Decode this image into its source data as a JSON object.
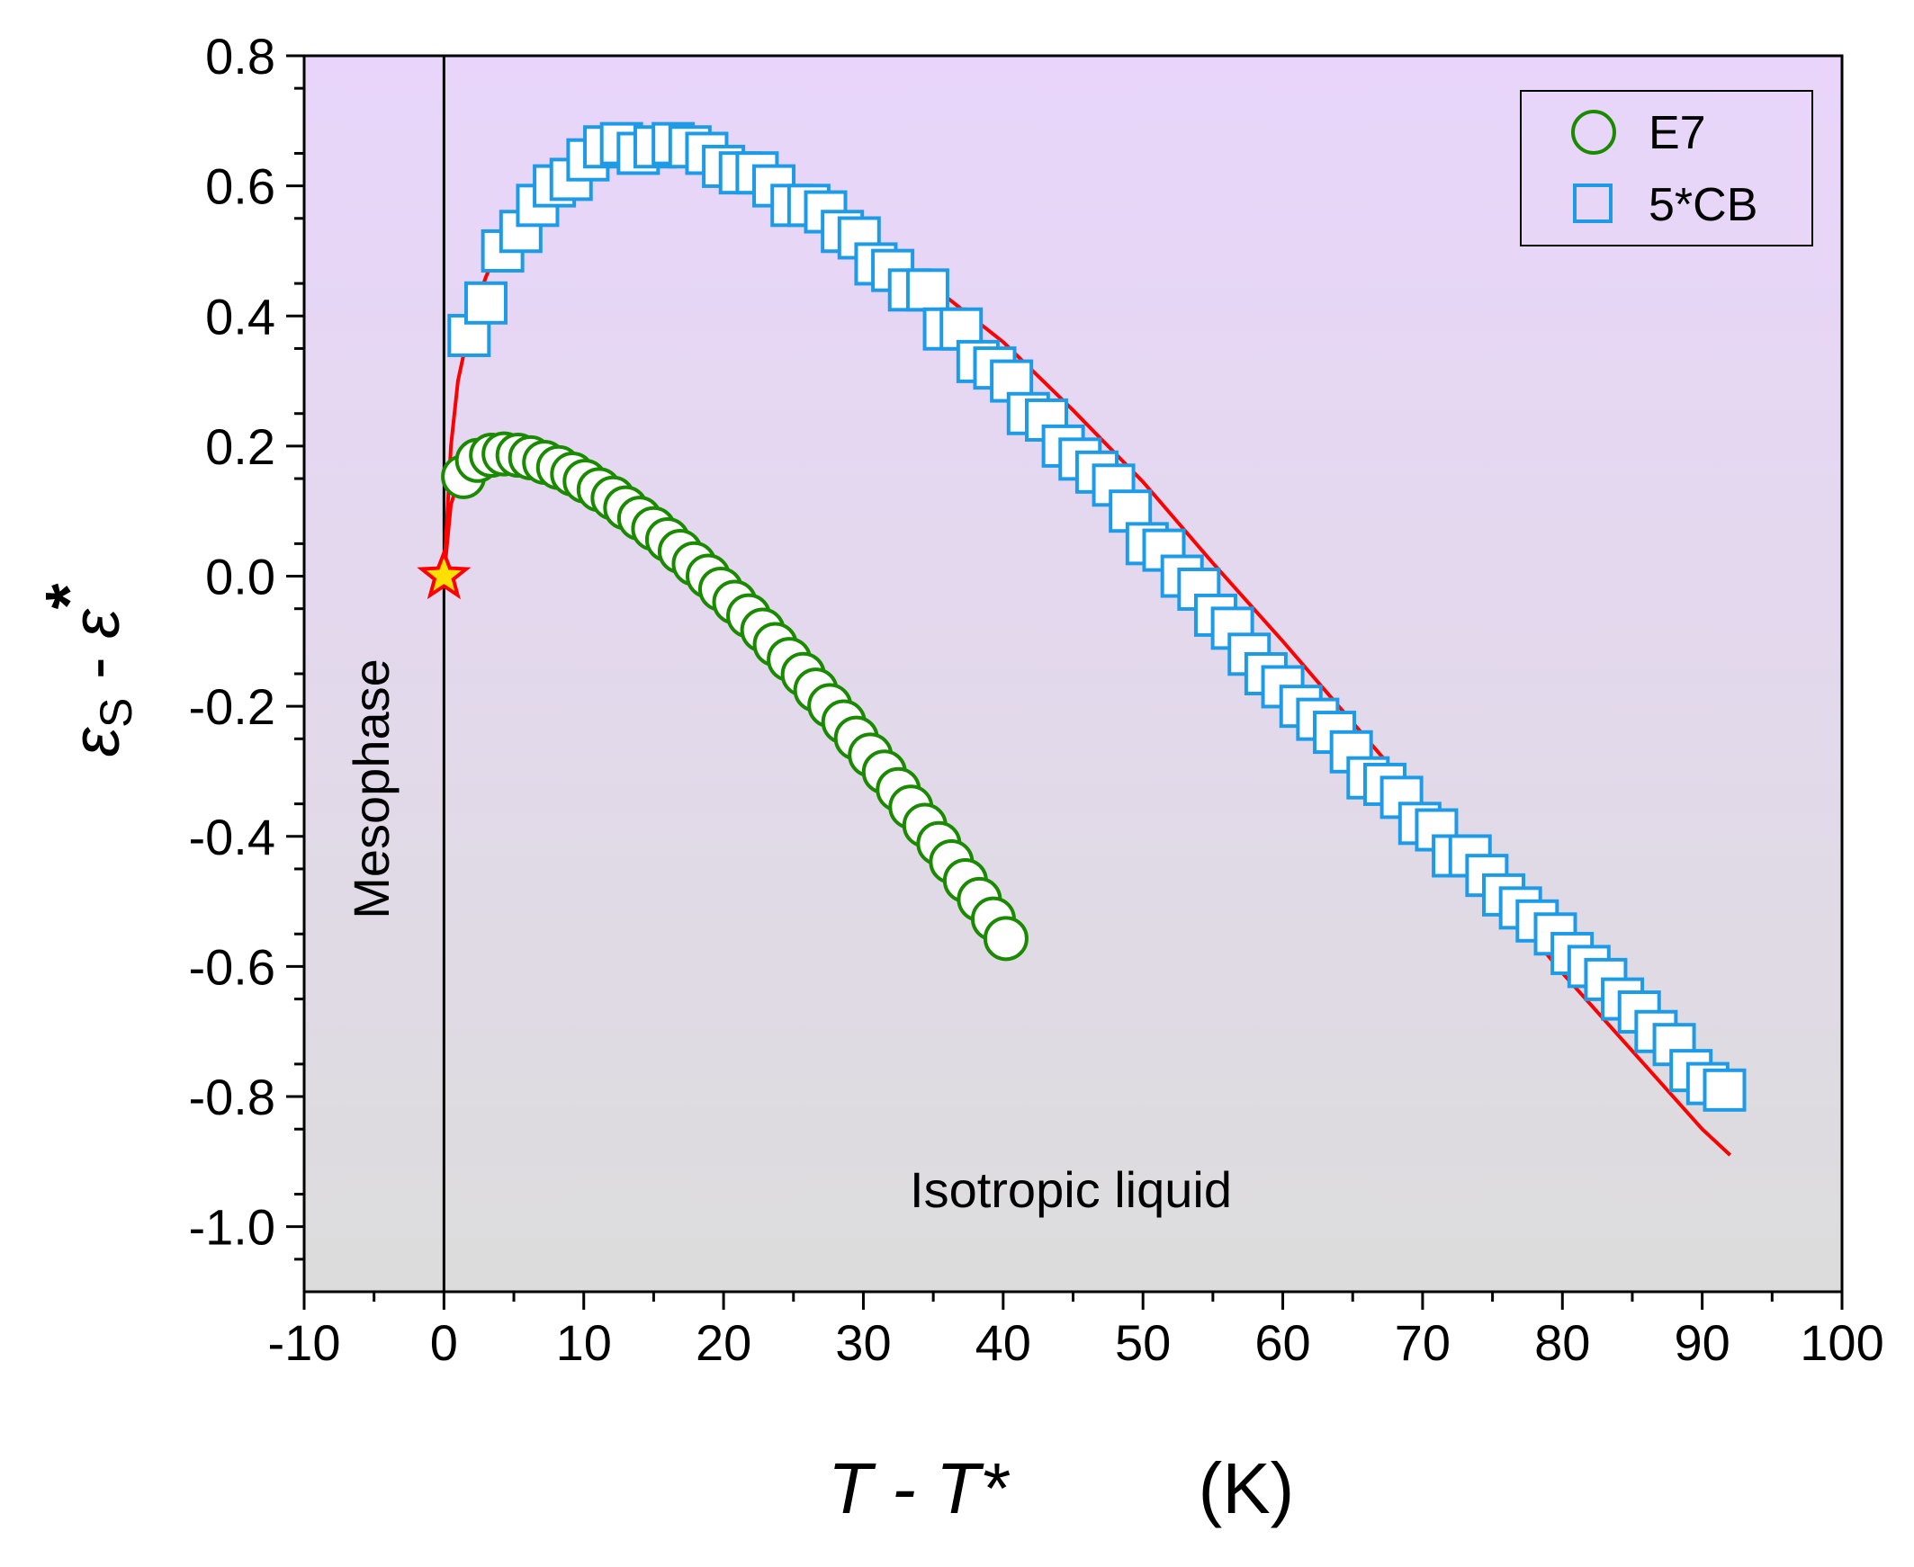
{
  "chart_data": {
    "type": "scatter",
    "xlabel_main": "T - T*",
    "xlabel_unit": "(K)",
    "ylabel_parts": [
      "ε",
      "S",
      " - ",
      "ε",
      "*"
    ],
    "xlim": [
      -10,
      100
    ],
    "ylim": [
      -1.1,
      0.8
    ],
    "xticks": [
      -10,
      0,
      10,
      20,
      30,
      40,
      50,
      60,
      70,
      80,
      90,
      100
    ],
    "xtick_labels": [
      "-10",
      "0",
      "10",
      "20",
      "30",
      "40",
      "50",
      "60",
      "70",
      "80",
      "90",
      "100"
    ],
    "yticks": [
      0.8,
      0.6,
      0.4,
      0.2,
      0.0,
      -0.2,
      -0.4,
      -0.6,
      -0.8,
      -1.0
    ],
    "ytick_labels": [
      "0.8",
      "0.6",
      "0.4",
      "0.2",
      "0.0",
      "-0.2",
      "-0.4",
      "-0.6",
      "-0.8",
      "-1.0"
    ],
    "annotations": {
      "mesophase": "Mesophase",
      "isotropic": "Isotropic liquid"
    },
    "legend_position": "top-right",
    "background_gradient": [
      "#e9d5fb",
      "#dcdcdc"
    ],
    "vertical_line_x": 0,
    "star_point": {
      "x": 0,
      "y": 0,
      "fill": "#ffe000",
      "stroke": "#ff0000"
    },
    "fit_color": "#ff0000",
    "series": [
      {
        "name": "E7",
        "marker": "circle",
        "color": "#1a8a00",
        "x": [
          1.4,
          2.4,
          3.4,
          4.3,
          5.3,
          6.2,
          7.2,
          8.2,
          9.2,
          10.1,
          11.1,
          12.1,
          13.0,
          14.0,
          15.0,
          16.0,
          16.9,
          17.9,
          18.9,
          19.8,
          20.8,
          21.8,
          22.8,
          23.7,
          24.7,
          25.7,
          26.6,
          27.6,
          28.6,
          29.5,
          30.5,
          31.5,
          32.5,
          33.4,
          34.4,
          35.4,
          36.3,
          37.3,
          38.3,
          39.3,
          40.2
        ],
        "y": [
          0.153,
          0.178,
          0.186,
          0.188,
          0.186,
          0.182,
          0.175,
          0.167,
          0.157,
          0.146,
          0.133,
          0.12,
          0.105,
          0.089,
          0.073,
          0.056,
          0.038,
          0.019,
          0.0,
          -0.02,
          -0.04,
          -0.061,
          -0.083,
          -0.105,
          -0.128,
          -0.151,
          -0.175,
          -0.199,
          -0.224,
          -0.249,
          -0.275,
          -0.301,
          -0.328,
          -0.355,
          -0.383,
          -0.411,
          -0.439,
          -0.468,
          -0.497,
          -0.527,
          -0.557
        ]
      },
      {
        "name": "5*CB",
        "marker": "square",
        "color": "#1e9be6",
        "x": [
          1.8,
          3.0,
          4.2,
          5.5,
          6.7,
          7.9,
          9.1,
          10.3,
          11.5,
          12.7,
          13.9,
          15.1,
          16.4,
          17.6,
          18.8,
          20.0,
          21.2,
          22.4,
          23.6,
          24.9,
          26.1,
          27.3,
          28.5,
          29.7,
          30.9,
          32.1,
          33.3,
          34.6,
          35.8,
          37.0,
          38.2,
          39.4,
          40.6,
          41.8,
          43.1,
          44.3,
          45.5,
          46.7,
          47.9,
          49.1,
          50.3,
          51.5,
          52.8,
          54.0,
          55.2,
          56.4,
          57.6,
          58.8,
          60.0,
          61.3,
          62.5,
          63.7,
          64.9,
          66.1,
          67.3,
          68.5,
          69.8,
          71.0,
          72.2,
          73.4,
          74.6,
          75.8,
          77.0,
          78.2,
          79.5,
          80.7,
          81.9,
          83.1,
          84.3,
          85.5,
          86.7,
          88.0,
          89.2,
          90.4,
          91.6
        ],
        "y": [
          0.37,
          0.42,
          0.5,
          0.53,
          0.57,
          0.6,
          0.61,
          0.64,
          0.66,
          0.665,
          0.65,
          0.66,
          0.665,
          0.66,
          0.65,
          0.63,
          0.62,
          0.62,
          0.6,
          0.57,
          0.57,
          0.56,
          0.53,
          0.52,
          0.48,
          0.47,
          0.44,
          0.44,
          0.38,
          0.38,
          0.33,
          0.32,
          0.3,
          0.25,
          0.24,
          0.2,
          0.18,
          0.16,
          0.14,
          0.1,
          0.05,
          0.04,
          0.0,
          -0.02,
          -0.06,
          -0.08,
          -0.12,
          -0.15,
          -0.17,
          -0.2,
          -0.22,
          -0.24,
          -0.27,
          -0.31,
          -0.32,
          -0.34,
          -0.38,
          -0.39,
          -0.43,
          -0.43,
          -0.46,
          -0.49,
          -0.51,
          -0.53,
          -0.55,
          -0.58,
          -0.6,
          -0.62,
          -0.65,
          -0.67,
          -0.7,
          -0.72,
          -0.76,
          -0.78,
          -0.79
        ]
      }
    ],
    "fits": [
      {
        "name": "E7 fit",
        "x": [
          0,
          0.5,
          1,
          2,
          3,
          4,
          5,
          6,
          8,
          10,
          12,
          14,
          16,
          18,
          20,
          22,
          24,
          26,
          28,
          30,
          32,
          34,
          36,
          38,
          40
        ],
        "y": [
          0.0,
          0.11,
          0.145,
          0.175,
          0.187,
          0.19,
          0.188,
          0.183,
          0.167,
          0.147,
          0.122,
          0.093,
          0.062,
          0.027,
          -0.01,
          -0.05,
          -0.092,
          -0.137,
          -0.185,
          -0.235,
          -0.288,
          -0.343,
          -0.401,
          -0.462,
          -0.525
        ]
      },
      {
        "name": "5*CB fit",
        "x": [
          0,
          0.5,
          1,
          2,
          3,
          4,
          6,
          8,
          10,
          12,
          14,
          16,
          18,
          20,
          25,
          30,
          35,
          40,
          45,
          50,
          55,
          60,
          65,
          70,
          75,
          80,
          85,
          90,
          92
        ],
        "y": [
          0.0,
          0.2,
          0.3,
          0.4,
          0.46,
          0.51,
          0.56,
          0.6,
          0.63,
          0.655,
          0.66,
          0.66,
          0.655,
          0.645,
          0.6,
          0.53,
          0.445,
          0.36,
          0.255,
          0.145,
          0.02,
          -0.1,
          -0.225,
          -0.35,
          -0.48,
          -0.61,
          -0.73,
          -0.85,
          -0.89
        ]
      }
    ],
    "legend": {
      "entries": [
        {
          "label": "E7",
          "marker": "circle",
          "color": "#1a8a00"
        },
        {
          "label": "5*CB",
          "marker": "square",
          "color": "#1e9be6"
        }
      ]
    }
  }
}
